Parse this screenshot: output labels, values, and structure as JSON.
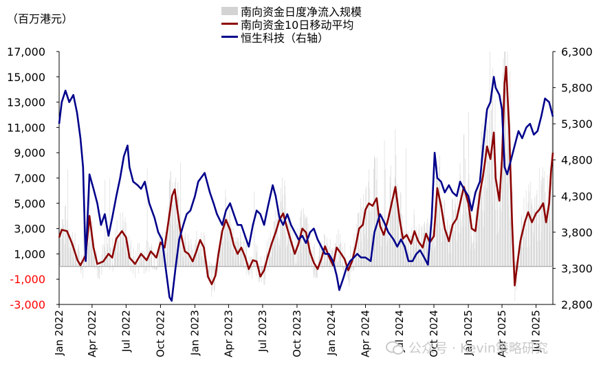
{
  "unit_label": "（百万港元）",
  "watermark": "公众号 · Kevin策略研究",
  "chart_data": {
    "type": "bar+line",
    "series": [
      {
        "name": "南向资金日度净流入规模",
        "kind": "bar",
        "axis": "left",
        "color": "#d3d3d3"
      },
      {
        "name": "南向资金10日移动平均",
        "kind": "line",
        "axis": "left",
        "color": "#8b0000"
      },
      {
        "name": "恒生科技（右轴）",
        "kind": "line",
        "axis": "right",
        "color": "#00008b"
      }
    ],
    "x_ticks": [
      "Jan 2022",
      "Apr 2022",
      "Jul 2022",
      "Oct 2022",
      "Jan 2023",
      "Apr 2023",
      "Jul 2023",
      "Oct 2023",
      "Jan 2024",
      "Apr 2024",
      "Jul 2024",
      "Oct 2024",
      "Jan 2025",
      "Apr 2025",
      "Jul 2025"
    ],
    "x_range": [
      "2022-01-03",
      "2025-08-15"
    ],
    "left_axis": {
      "min": -3000,
      "max": 17000,
      "ticks": [
        -3000,
        -1000,
        1000,
        3000,
        5000,
        7000,
        9000,
        11000,
        13000,
        15000,
        17000
      ],
      "tick_labels": [
        "-3,000",
        "-1,000",
        "1,000",
        "3,000",
        "5,000",
        "7,000",
        "9,000",
        "11,000",
        "13,000",
        "15,000",
        "17,000"
      ],
      "negative_color": "#ff0000"
    },
    "right_axis": {
      "min": 2800,
      "max": 6300,
      "ticks": [
        2800,
        3300,
        3800,
        4300,
        4800,
        5300,
        5800,
        6300
      ],
      "tick_labels": [
        "2,800",
        "3,300",
        "3,800",
        "4,300",
        "4,800",
        "5,300",
        "5,800",
        "6,300"
      ]
    },
    "ma10": [
      [
        "2022-01-03",
        2300
      ],
      [
        "2022-01-10",
        2900
      ],
      [
        "2022-01-24",
        2800
      ],
      [
        "2022-02-07",
        1800
      ],
      [
        "2022-02-21",
        500
      ],
      [
        "2022-03-01",
        100
      ],
      [
        "2022-03-15",
        900
      ],
      [
        "2022-03-25",
        4000
      ],
      [
        "2022-04-05",
        1500
      ],
      [
        "2022-04-15",
        200
      ],
      [
        "2022-05-01",
        400
      ],
      [
        "2022-05-15",
        1000
      ],
      [
        "2022-05-25",
        700
      ],
      [
        "2022-06-05",
        2200
      ],
      [
        "2022-06-20",
        2800
      ],
      [
        "2022-07-01",
        2300
      ],
      [
        "2022-07-10",
        700
      ],
      [
        "2022-07-25",
        200
      ],
      [
        "2022-08-10",
        1000
      ],
      [
        "2022-08-25",
        500
      ],
      [
        "2022-09-05",
        1200
      ],
      [
        "2022-09-20",
        700
      ],
      [
        "2022-10-01",
        1900
      ],
      [
        "2022-10-12",
        1500
      ],
      [
        "2022-10-22",
        3500
      ],
      [
        "2022-11-01",
        5600
      ],
      [
        "2022-11-08",
        6100
      ],
      [
        "2022-11-15",
        4500
      ],
      [
        "2022-11-25",
        2500
      ],
      [
        "2022-12-05",
        1200
      ],
      [
        "2022-12-15",
        1000
      ],
      [
        "2022-12-26",
        400
      ],
      [
        "2023-01-05",
        1200
      ],
      [
        "2023-01-15",
        2100
      ],
      [
        "2023-01-25",
        1500
      ],
      [
        "2023-02-05",
        -800
      ],
      [
        "2023-02-15",
        -1400
      ],
      [
        "2023-02-25",
        -700
      ],
      [
        "2023-03-05",
        1000
      ],
      [
        "2023-03-15",
        2800
      ],
      [
        "2023-03-25",
        3700
      ],
      [
        "2023-04-05",
        2900
      ],
      [
        "2023-04-15",
        1700
      ],
      [
        "2023-04-25",
        1000
      ],
      [
        "2023-05-05",
        1500
      ],
      [
        "2023-05-15",
        800
      ],
      [
        "2023-05-25",
        -200
      ],
      [
        "2023-06-05",
        500
      ],
      [
        "2023-06-15",
        400
      ],
      [
        "2023-06-25",
        -800
      ],
      [
        "2023-07-05",
        -300
      ],
      [
        "2023-07-15",
        800
      ],
      [
        "2023-07-25",
        1800
      ],
      [
        "2023-08-05",
        2700
      ],
      [
        "2023-08-15",
        3700
      ],
      [
        "2023-08-25",
        4200
      ],
      [
        "2023-09-05",
        3000
      ],
      [
        "2023-09-15",
        2000
      ],
      [
        "2023-09-25",
        1000
      ],
      [
        "2023-10-05",
        1800
      ],
      [
        "2023-10-15",
        3000
      ],
      [
        "2023-10-25",
        2700
      ],
      [
        "2023-11-05",
        1100
      ],
      [
        "2023-11-15",
        300
      ],
      [
        "2023-11-25",
        -200
      ],
      [
        "2023-12-05",
        600
      ],
      [
        "2023-12-15",
        1600
      ],
      [
        "2023-12-25",
        800
      ],
      [
        "2024-01-05",
        100
      ],
      [
        "2024-01-15",
        1500
      ],
      [
        "2024-01-25",
        1100
      ],
      [
        "2024-02-05",
        600
      ],
      [
        "2024-02-15",
        -300
      ],
      [
        "2024-02-25",
        400
      ],
      [
        "2024-03-05",
        1500
      ],
      [
        "2024-03-15",
        3000
      ],
      [
        "2024-03-25",
        3300
      ],
      [
        "2024-04-01",
        4500
      ],
      [
        "2024-04-10",
        5000
      ],
      [
        "2024-04-20",
        4800
      ],
      [
        "2024-05-01",
        5400
      ],
      [
        "2024-05-10",
        3200
      ],
      [
        "2024-05-20",
        2500
      ],
      [
        "2024-06-01",
        3800
      ],
      [
        "2024-06-10",
        5000
      ],
      [
        "2024-06-20",
        6300
      ],
      [
        "2024-07-01",
        3800
      ],
      [
        "2024-07-10",
        2200
      ],
      [
        "2024-07-20",
        2500
      ],
      [
        "2024-08-01",
        1800
      ],
      [
        "2024-08-10",
        2800
      ],
      [
        "2024-08-20",
        2000
      ],
      [
        "2024-09-01",
        1500
      ],
      [
        "2024-09-10",
        2600
      ],
      [
        "2024-09-20",
        1900
      ],
      [
        "2024-10-01",
        2400
      ],
      [
        "2024-10-10",
        6200
      ],
      [
        "2024-10-20",
        4800
      ],
      [
        "2024-10-30",
        3000
      ],
      [
        "2024-11-10",
        2000
      ],
      [
        "2024-11-20",
        3300
      ],
      [
        "2024-12-01",
        3800
      ],
      [
        "2024-12-10",
        5000
      ],
      [
        "2024-12-20",
        6300
      ],
      [
        "2025-01-01",
        5000
      ],
      [
        "2025-01-10",
        3000
      ],
      [
        "2025-01-20",
        2800
      ],
      [
        "2025-02-01",
        5800
      ],
      [
        "2025-02-10",
        7300
      ],
      [
        "2025-02-20",
        9500
      ],
      [
        "2025-03-01",
        8500
      ],
      [
        "2025-03-10",
        10600
      ],
      [
        "2025-03-15",
        7000
      ],
      [
        "2025-03-25",
        5200
      ],
      [
        "2025-04-01",
        8500
      ],
      [
        "2025-04-08",
        14500
      ],
      [
        "2025-04-12",
        15800
      ],
      [
        "2025-04-20",
        11000
      ],
      [
        "2025-04-28",
        3500
      ],
      [
        "2025-05-05",
        -1500
      ],
      [
        "2025-05-12",
        200
      ],
      [
        "2025-05-20",
        2000
      ],
      [
        "2025-06-01",
        3500
      ],
      [
        "2025-06-10",
        4300
      ],
      [
        "2025-06-20",
        3500
      ],
      [
        "2025-07-01",
        4200
      ],
      [
        "2025-07-10",
        4500
      ],
      [
        "2025-07-20",
        5000
      ],
      [
        "2025-07-28",
        3500
      ],
      [
        "2025-08-05",
        5000
      ],
      [
        "2025-08-10",
        7500
      ],
      [
        "2025-08-15",
        9000
      ]
    ],
    "hstech": [
      [
        "2022-01-03",
        5300
      ],
      [
        "2022-01-10",
        5600
      ],
      [
        "2022-01-20",
        5760
      ],
      [
        "2022-01-30",
        5600
      ],
      [
        "2022-02-10",
        5700
      ],
      [
        "2022-02-20",
        5450
      ],
      [
        "2022-03-01",
        5100
      ],
      [
        "2022-03-08",
        4700
      ],
      [
        "2022-03-15",
        3400
      ],
      [
        "2022-03-25",
        4600
      ],
      [
        "2022-04-05",
        4400
      ],
      [
        "2022-04-15",
        4200
      ],
      [
        "2022-04-25",
        3900
      ],
      [
        "2022-05-05",
        4050
      ],
      [
        "2022-05-15",
        3750
      ],
      [
        "2022-05-25",
        4000
      ],
      [
        "2022-06-05",
        4300
      ],
      [
        "2022-06-15",
        4550
      ],
      [
        "2022-06-25",
        4850
      ],
      [
        "2022-07-05",
        5000
      ],
      [
        "2022-07-10",
        4700
      ],
      [
        "2022-07-20",
        4500
      ],
      [
        "2022-08-01",
        4450
      ],
      [
        "2022-08-10",
        4400
      ],
      [
        "2022-08-20",
        4500
      ],
      [
        "2022-09-01",
        4200
      ],
      [
        "2022-09-15",
        4000
      ],
      [
        "2022-09-25",
        3800
      ],
      [
        "2022-10-05",
        3700
      ],
      [
        "2022-10-15",
        3300
      ],
      [
        "2022-10-25",
        2900
      ],
      [
        "2022-10-31",
        2850
      ],
      [
        "2022-11-10",
        3300
      ],
      [
        "2022-11-20",
        3700
      ],
      [
        "2022-12-01",
        3900
      ],
      [
        "2022-12-10",
        4050
      ],
      [
        "2022-12-20",
        4100
      ],
      [
        "2023-01-01",
        4300
      ],
      [
        "2023-01-10",
        4500
      ],
      [
        "2023-01-27",
        4620
      ],
      [
        "2023-02-10",
        4350
      ],
      [
        "2023-02-20",
        4200
      ],
      [
        "2023-03-01",
        4050
      ],
      [
        "2023-03-15",
        3900
      ],
      [
        "2023-03-25",
        4100
      ],
      [
        "2023-04-05",
        4200
      ],
      [
        "2023-04-15",
        4050
      ],
      [
        "2023-04-25",
        3900
      ],
      [
        "2023-05-05",
        3900
      ],
      [
        "2023-05-15",
        3750
      ],
      [
        "2023-05-25",
        3600
      ],
      [
        "2023-06-05",
        3900
      ],
      [
        "2023-06-15",
        4100
      ],
      [
        "2023-06-25",
        4050
      ],
      [
        "2023-07-05",
        3900
      ],
      [
        "2023-07-15",
        4150
      ],
      [
        "2023-07-28",
        4450
      ],
      [
        "2023-08-05",
        4300
      ],
      [
        "2023-08-15",
        4000
      ],
      [
        "2023-08-25",
        3900
      ],
      [
        "2023-09-05",
        4050
      ],
      [
        "2023-09-15",
        3900
      ],
      [
        "2023-09-25",
        3800
      ],
      [
        "2023-10-05",
        3700
      ],
      [
        "2023-10-15",
        3750
      ],
      [
        "2023-10-25",
        3650
      ],
      [
        "2023-11-05",
        3800
      ],
      [
        "2023-11-15",
        3850
      ],
      [
        "2023-11-25",
        3700
      ],
      [
        "2023-12-05",
        3600
      ],
      [
        "2023-12-15",
        3500
      ],
      [
        "2023-12-25",
        3500
      ],
      [
        "2024-01-05",
        3400
      ],
      [
        "2024-01-15",
        3200
      ],
      [
        "2024-01-22",
        3000
      ],
      [
        "2024-02-01",
        3150
      ],
      [
        "2024-02-10",
        3300
      ],
      [
        "2024-02-20",
        3400
      ],
      [
        "2024-03-01",
        3450
      ],
      [
        "2024-03-10",
        3500
      ],
      [
        "2024-03-20",
        3450
      ],
      [
        "2024-04-01",
        3450
      ],
      [
        "2024-04-15",
        3400
      ],
      [
        "2024-04-25",
        3800
      ],
      [
        "2024-05-10",
        4050
      ],
      [
        "2024-05-20",
        3950
      ],
      [
        "2024-06-01",
        3800
      ],
      [
        "2024-06-15",
        3700
      ],
      [
        "2024-06-25",
        3600
      ],
      [
        "2024-07-05",
        3700
      ],
      [
        "2024-07-15",
        3600
      ],
      [
        "2024-07-25",
        3400
      ],
      [
        "2024-08-05",
        3400
      ],
      [
        "2024-08-15",
        3500
      ],
      [
        "2024-08-25",
        3550
      ],
      [
        "2024-09-05",
        3450
      ],
      [
        "2024-09-15",
        3350
      ],
      [
        "2024-09-25",
        4000
      ],
      [
        "2024-10-03",
        4900
      ],
      [
        "2024-10-10",
        4550
      ],
      [
        "2024-10-20",
        4500
      ],
      [
        "2024-10-30",
        4350
      ],
      [
        "2024-11-10",
        4450
      ],
      [
        "2024-11-20",
        4350
      ],
      [
        "2024-12-01",
        4300
      ],
      [
        "2024-12-10",
        4500
      ],
      [
        "2024-12-20",
        4400
      ],
      [
        "2025-01-01",
        4300
      ],
      [
        "2025-01-10",
        4100
      ],
      [
        "2025-01-20",
        4350
      ],
      [
        "2025-02-01",
        4500
      ],
      [
        "2025-02-10",
        5000
      ],
      [
        "2025-02-20",
        5500
      ],
      [
        "2025-03-01",
        5600
      ],
      [
        "2025-03-10",
        5950
      ],
      [
        "2025-03-15",
        5800
      ],
      [
        "2025-03-25",
        5700
      ],
      [
        "2025-04-01",
        5500
      ],
      [
        "2025-04-08",
        4700
      ],
      [
        "2025-04-15",
        4600
      ],
      [
        "2025-04-25",
        4800
      ],
      [
        "2025-05-05",
        5000
      ],
      [
        "2025-05-15",
        5200
      ],
      [
        "2025-05-25",
        5100
      ],
      [
        "2025-06-05",
        5250
      ],
      [
        "2025-06-15",
        5300
      ],
      [
        "2025-06-25",
        5150
      ],
      [
        "2025-07-05",
        5200
      ],
      [
        "2025-07-15",
        5400
      ],
      [
        "2025-07-25",
        5650
      ],
      [
        "2025-08-05",
        5600
      ],
      [
        "2025-08-15",
        5400
      ]
    ],
    "daily_bars_note": "dense daily bars, mostly 0-5000, spiking to ~17000 in 2025"
  }
}
